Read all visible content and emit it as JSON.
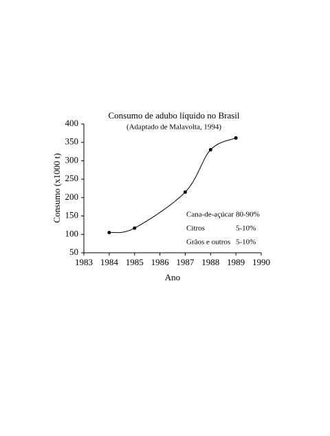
{
  "chart_data": {
    "type": "scatter",
    "title": "Consumo de adubo líquido no Brasil",
    "subtitle": "(Adaptado de Malavolta, 1994)",
    "x_label": "Ano",
    "y_label": "Consumo (x1000 t)",
    "x": [
      1984,
      1985,
      1987,
      1988,
      1989
    ],
    "values": [
      105,
      117,
      215,
      330,
      362
    ],
    "color": "#000000",
    "connect": "smooth",
    "xlim": [
      1983,
      1990
    ],
    "xticks": [
      1983,
      1984,
      1985,
      1986,
      1987,
      1988,
      1989,
      1990
    ],
    "ylim": [
      50,
      400
    ],
    "yticks": [
      50,
      100,
      150,
      200,
      250,
      300,
      350,
      400
    ],
    "annotations": [
      [
        "Cana-de-açúcar",
        "80-90%"
      ],
      [
        "Citros",
        "5-10%"
      ],
      [
        "Grãos e outros",
        "5-10%"
      ]
    ]
  }
}
